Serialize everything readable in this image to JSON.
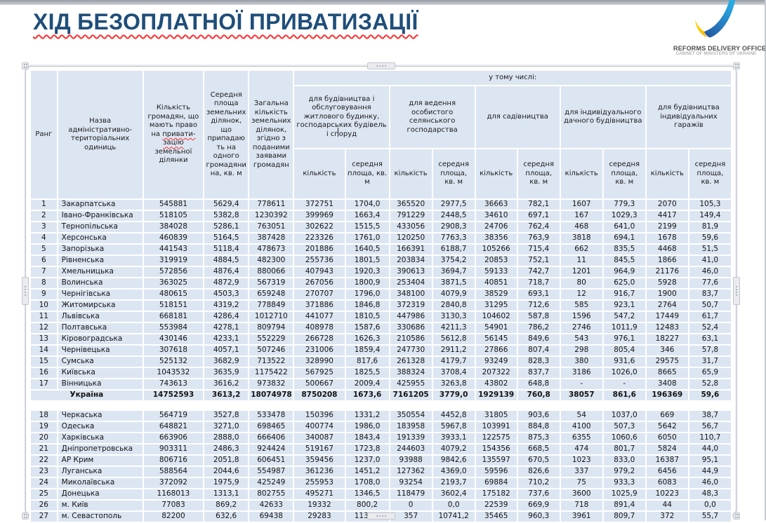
{
  "slide": {
    "title": "ХІД БЕЗОПЛАТНОЇ ПРИВАТИЗАЦІЇ"
  },
  "logo": {
    "line1": "REFORMS DELIVERY OFFICE",
    "line2": "CABINET OF MINISTERS OF UKRAINE"
  },
  "colors": {
    "title_blue": "#1f4e79",
    "cell_blue": "#dce6f2",
    "spellcheck_red": "#ff2f2f",
    "logo_blue_dark": "#2350a0",
    "logo_blue_cyan": "#2aabe2",
    "logo_yellow": "#ffd500"
  },
  "table": {
    "headers": {
      "rank": "Ранг",
      "name": "Назва адміністративно-територіальних одиниць",
      "citizens_pre": "Кількість громадян, що мають право на ",
      "citizens_wavy": "привати-зацію",
      "citizens_post": " земельної ділянки",
      "avg_area": "Середня площа земельних ділянок, що припадають на одного громадянина, кв. м",
      "total_plots": "Загальна кількість земельних ділянок, згідно з поданими заявами громадян",
      "including": "у тому числі:",
      "groups": [
        "для будівництва і обслуговування житлового будинку, господарських будівель і споруд",
        "для ведення особистого селянського господарства",
        "для садівництва",
        "для індивідуального дачного будівництва",
        "для будівництва індивідуальних гаражів"
      ],
      "sub_count": "кількість",
      "sub_area": "середня площа, кв. м"
    },
    "rows_top": [
      [
        "1",
        "Закарпатська",
        "545881",
        "5629,4",
        "778611",
        "372751",
        "1704,0",
        "365520",
        "2977,5",
        "36663",
        "782,1",
        "1607",
        "779,3",
        "2070",
        "105,3"
      ],
      [
        "2",
        "Івано-Франківська",
        "518105",
        "5382,8",
        "1230392",
        "399969",
        "1663,4",
        "791229",
        "2448,5",
        "34610",
        "697,1",
        "167",
        "1029,3",
        "4417",
        "149,4"
      ],
      [
        "3",
        "Тернопільська",
        "384028",
        "5286,1",
        "763051",
        "302622",
        "1515,5",
        "433056",
        "2908,3",
        "24706",
        "762,4",
        "468",
        "641,0",
        "2199",
        "81,9"
      ],
      [
        "4",
        "Херсонська",
        "460839",
        "5164,5",
        "387428",
        "223326",
        "1761,0",
        "120250",
        "7763,3",
        "38356",
        "763,9",
        "3818",
        "694,1",
        "1678",
        "59,6"
      ],
      [
        "5",
        "Запорізька",
        "441543",
        "5118,4",
        "478673",
        "201886",
        "1640,5",
        "166391",
        "6188,7",
        "105266",
        "715,4",
        "662",
        "835,5",
        "4468",
        "51,5"
      ],
      [
        "6",
        "Рівненська",
        "319919",
        "4884,5",
        "482300",
        "255736",
        "1801,5",
        "203834",
        "3754,2",
        "20853",
        "752,1",
        "11",
        "845,5",
        "1866",
        "41,0"
      ],
      [
        "7",
        "Хмельницька",
        "572856",
        "4876,4",
        "880066",
        "407943",
        "1920,3",
        "390613",
        "3694,7",
        "59133",
        "742,7",
        "1201",
        "964,9",
        "21176",
        "46,0"
      ],
      [
        "8",
        "Волинська",
        "363025",
        "4872,9",
        "567319",
        "267056",
        "1800,9",
        "253404",
        "3871,5",
        "40851",
        "718,7",
        "80",
        "625,0",
        "5928",
        "77,6"
      ],
      [
        "9",
        "Чернігівська",
        "480615",
        "4503,3",
        "659248",
        "270707",
        "1796,0",
        "348100",
        "4079,9",
        "38529",
        "693,1",
        "12",
        "916,7",
        "1900",
        "83,7"
      ],
      [
        "10",
        "Житомирська",
        "518151",
        "4319,2",
        "778849",
        "371886",
        "1846,8",
        "372319",
        "2840,8",
        "31295",
        "712,6",
        "585",
        "923,1",
        "2764",
        "50,7"
      ],
      [
        "11",
        "Львівська",
        "668181",
        "4286,4",
        "1012710",
        "441077",
        "1810,5",
        "447986",
        "3130,3",
        "104602",
        "587,8",
        "1596",
        "547,2",
        "17449",
        "61,7"
      ],
      [
        "12",
        "Полтавська",
        "553984",
        "4278,1",
        "809794",
        "408978",
        "1587,6",
        "330686",
        "4211,3",
        "54901",
        "786,2",
        "2746",
        "1011,9",
        "12483",
        "52,4"
      ],
      [
        "13",
        "Кіровоградська",
        "430146",
        "4233,1",
        "552229",
        "266728",
        "1626,3",
        "210586",
        "5612,8",
        "56145",
        "849,6",
        "543",
        "976,1",
        "18227",
        "63,1"
      ],
      [
        "14",
        "Чернівецька",
        "307618",
        "4057,1",
        "507246",
        "231006",
        "1859,4",
        "247730",
        "2911,2",
        "27866",
        "807,4",
        "298",
        "805,4",
        "346",
        "57,8"
      ],
      [
        "15",
        "Сумська",
        "525132",
        "3682,9",
        "713522",
        "328990",
        "817,6",
        "261328",
        "4179,7",
        "93249",
        "828,3",
        "380",
        "931,6",
        "29575",
        "31,7"
      ],
      [
        "16",
        "Київська",
        "1043532",
        "3635,9",
        "1175422",
        "567925",
        "1825,5",
        "388324",
        "3708,4",
        "207322",
        "837,7",
        "3186",
        "1026,0",
        "8665",
        "65,9"
      ],
      [
        "17",
        "Вінницька",
        "743613",
        "3616,2",
        "973832",
        "500667",
        "2009,4",
        "425955",
        "3263,8",
        "43802",
        "648,8",
        "-",
        "-",
        "3408",
        "52,8"
      ]
    ],
    "total_row": [
      "Україна",
      "14752593",
      "3613,2",
      "18074978",
      "8750208",
      "1673,6",
      "7161205",
      "3779,0",
      "1929139",
      "760,8",
      "38057",
      "861,6",
      "196369",
      "59,6"
    ],
    "rows_bottom": [
      [
        "18",
        "Черкаська",
        "564719",
        "3527,8",
        "533478",
        "150396",
        "1331,2",
        "350554",
        "4452,8",
        "31805",
        "903,6",
        "54",
        "1037,0",
        "669",
        "38,7"
      ],
      [
        "19",
        "Одеська",
        "648821",
        "3271,0",
        "698465",
        "400774",
        "1986,0",
        "183958",
        "5967,8",
        "103991",
        "884,8",
        "4100",
        "507,3",
        "5642",
        "56,7"
      ],
      [
        "20",
        "Харківська",
        "663906",
        "2888,0",
        "666406",
        "340087",
        "1843,4",
        "191339",
        "3933,1",
        "122575",
        "875,3",
        "6355",
        "1060,6",
        "6050",
        "110,7"
      ],
      [
        "21",
        "Дніпропетровська",
        "903311",
        "2486,3",
        "924424",
        "519167",
        "1723,8",
        "244603",
        "4079,2",
        "154356",
        "668,5",
        "474",
        "801,7",
        "5824",
        "44,0"
      ],
      [
        "22",
        "АР Крим",
        "806716",
        "2051,8",
        "606451",
        "359456",
        "1237,0",
        "93988",
        "9842,6",
        "135597",
        "670,5",
        "1023",
        "833,0",
        "16387",
        "95,1"
      ],
      [
        "23",
        "Луганська",
        "588564",
        "2044,6",
        "554987",
        "361236",
        "1451,2",
        "127362",
        "4369,0",
        "59596",
        "826,6",
        "337",
        "979,2",
        "6456",
        "44,9"
      ],
      [
        "24",
        "Миколаївська",
        "372092",
        "1975,9",
        "425249",
        "255953",
        "1708,0",
        "93254",
        "2193,7",
        "69884",
        "710,2",
        "75",
        "933,3",
        "6083",
        "46,0"
      ],
      [
        "25",
        "Донецька",
        "1168013",
        "1313,1",
        "802755",
        "495271",
        "1346,5",
        "118479",
        "3602,4",
        "175182",
        "737,6",
        "3600",
        "1025,9",
        "10223",
        "48,3"
      ],
      [
        "26",
        "м. Київ",
        "77083",
        "869,2",
        "42633",
        "19332",
        "800,2",
        "0",
        "0,0",
        "22539",
        "669,9",
        "718",
        "891,4",
        "44",
        "0,0"
      ],
      [
        "27",
        "м. Севастополь",
        "82200",
        "632,6",
        "69438",
        "29283",
        "1136,0",
        "357",
        "10741,2",
        "35465",
        "960,3",
        "3961",
        "809,7",
        "372",
        "55,7"
      ]
    ]
  }
}
